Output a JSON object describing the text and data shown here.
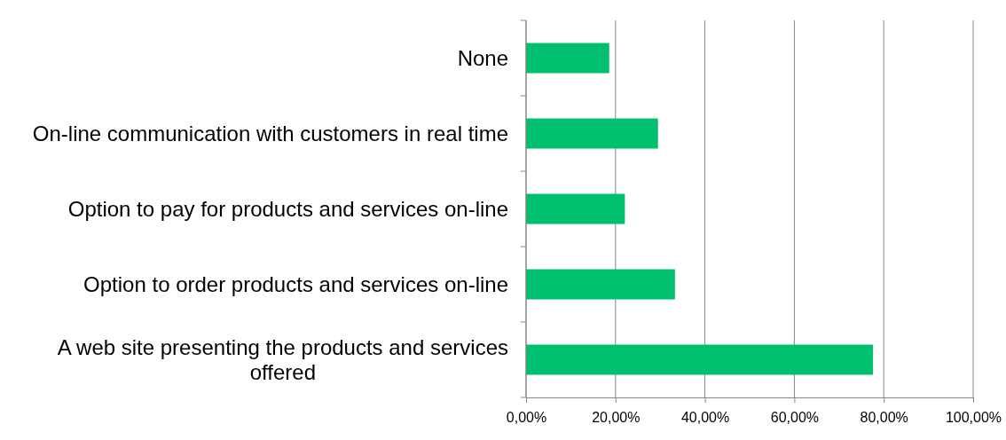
{
  "chart_data": {
    "type": "bar",
    "orientation": "horizontal",
    "categories": [
      "None",
      "On-line communication with customers in real time",
      "Option to pay for products and services on-line",
      "Option to order products and services on-line",
      "A web site presenting the products and services offered"
    ],
    "values": [
      18.6,
      29.5,
      22.1,
      33.3,
      77.6
    ],
    "color": "#00bf6f",
    "xlim": [
      0,
      100
    ],
    "xticks": [
      {
        "value": 0,
        "label": "0,00%"
      },
      {
        "value": 20,
        "label": "20,00%"
      },
      {
        "value": 40,
        "label": "40,00%"
      },
      {
        "value": 60,
        "label": "60,00%"
      },
      {
        "value": 80,
        "label": "80,00%"
      },
      {
        "value": 100,
        "label": "100,00%"
      }
    ],
    "grid": "x"
  }
}
